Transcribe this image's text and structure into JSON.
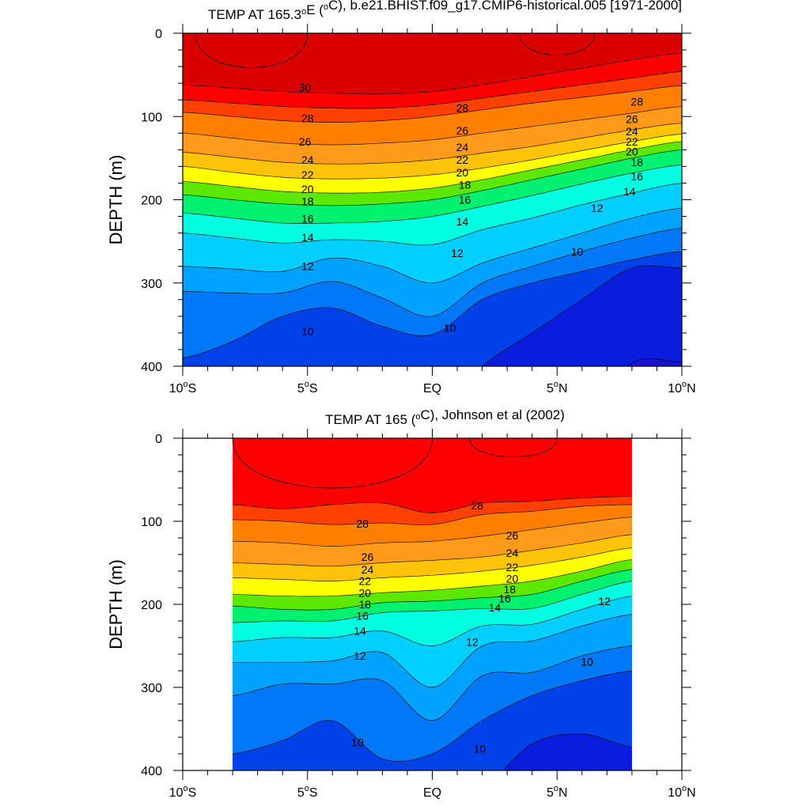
{
  "chart_data": [
    {
      "type": "heatmap",
      "title": "TEMP AT 165.3°E (°C), b.e21.BHIST.f09_g17.CMIP6-historical.005 [1971-2000]",
      "title_parts": {
        "pre": "TEMP AT 165.3",
        "deg": "o",
        "mid": "E (",
        "deg2": "o",
        "post": "C), b.e21.BHIST.f09_g17.CMIP6-historical.005 [1971-2000]"
      },
      "ylabel": "DEPTH (m)",
      "xlabel": "",
      "xlim": [
        -10,
        10
      ],
      "ylim": [
        400,
        0
      ],
      "x_ticks": [
        {
          "value": -10,
          "num": "10",
          "hem": "S"
        },
        {
          "value": -5,
          "num": "5",
          "hem": "S"
        },
        {
          "value": 0,
          "num": "EQ",
          "hem": ""
        },
        {
          "value": 5,
          "num": "5",
          "hem": "N"
        },
        {
          "value": 10,
          "num": "10",
          "hem": "N"
        }
      ],
      "y_ticks": [
        0,
        100,
        200,
        300,
        400
      ],
      "data_x_range": [
        -10,
        10
      ],
      "contour_interval_c": 1,
      "isotherm_depths_note": "depth (m) of each isotherm at x = -10,-8,-6,-4,-2,0,2,4,6,8,10",
      "x_nodes": [
        -10,
        -8,
        -6,
        -4,
        -2,
        0,
        2,
        4,
        6,
        8,
        10
      ],
      "isotherms": [
        {
          "temp": 30,
          "depth": [
            62,
            66,
            70,
            72,
            73,
            70,
            62,
            52,
            42,
            32,
            24
          ]
        },
        {
          "temp": 29,
          "depth": [
            80,
            84,
            88,
            90,
            90,
            86,
            78,
            70,
            62,
            54,
            46
          ]
        },
        {
          "temp": 28,
          "depth": [
            95,
            100,
            105,
            107,
            105,
            100,
            92,
            84,
            77,
            70,
            63
          ]
        },
        {
          "temp": 26,
          "depth": [
            120,
            126,
            132,
            134,
            132,
            128,
            120,
            112,
            104,
            96,
            88
          ]
        },
        {
          "temp": 24,
          "depth": [
            143,
            149,
            155,
            157,
            156,
            152,
            144,
            136,
            126,
            116,
            108
          ]
        },
        {
          "temp": 22,
          "depth": [
            160,
            167,
            173,
            175,
            174,
            170,
            162,
            152,
            141,
            130,
            121
          ]
        },
        {
          "temp": 20,
          "depth": [
            178,
            184,
            190,
            192,
            191,
            186,
            176,
            164,
            152,
            140,
            130
          ]
        },
        {
          "temp": 18,
          "depth": [
            194,
            200,
            205,
            207,
            205,
            200,
            189,
            176,
            163,
            150,
            140
          ]
        },
        {
          "temp": 16,
          "depth": [
            216,
            222,
            228,
            228,
            226,
            220,
            208,
            195,
            181,
            168,
            158
          ]
        },
        {
          "temp": 14,
          "depth": [
            240,
            246,
            252,
            248,
            250,
            254,
            236,
            222,
            206,
            192,
            180
          ]
        },
        {
          "temp": 12,
          "depth": [
            280,
            283,
            286,
            270,
            280,
            300,
            276,
            258,
            240,
            222,
            210
          ]
        },
        {
          "temp": 11,
          "depth": [
            310,
            312,
            312,
            298,
            318,
            340,
            300,
            280,
            262,
            246,
            234
          ]
        },
        {
          "temp": 10,
          "depth": [
            390,
            370,
            340,
            330,
            352,
            362,
            320,
            300,
            286,
            272,
            262
          ]
        },
        {
          "temp": 9,
          "depth": [
            460,
            460,
            460,
            460,
            460,
            460,
            400,
            360,
            320,
            282,
            282
          ]
        },
        {
          "temp": 8,
          "depth": [
            460,
            460,
            460,
            460,
            460,
            460,
            460,
            460,
            460,
            396,
            395
          ]
        }
      ],
      "warm_cores": [
        {
          "temp": 30.5,
          "x_from": -9.5,
          "x_to": -5,
          "max_depth": 55
        },
        {
          "temp": 30.5,
          "x_from": 3.5,
          "x_to": 6.5,
          "max_depth": 35
        }
      ],
      "contour_labels": [
        {
          "text": "30",
          "x": -5.1,
          "depth": 65
        },
        {
          "text": "28",
          "x": -5.0,
          "depth": 102
        },
        {
          "text": "26",
          "x": -5.1,
          "depth": 130
        },
        {
          "text": "24",
          "x": -5.0,
          "depth": 152
        },
        {
          "text": "22",
          "x": -5.0,
          "depth": 170
        },
        {
          "text": "20",
          "x": -5.0,
          "depth": 187
        },
        {
          "text": "18",
          "x": -5.0,
          "depth": 202
        },
        {
          "text": "16",
          "x": -5.0,
          "depth": 223
        },
        {
          "text": "14",
          "x": -5.0,
          "depth": 245
        },
        {
          "text": "12",
          "x": -5.0,
          "depth": 280
        },
        {
          "text": "10",
          "x": -5.0,
          "depth": 358
        },
        {
          "text": "28",
          "x": 1.2,
          "depth": 90
        },
        {
          "text": "26",
          "x": 1.2,
          "depth": 117
        },
        {
          "text": "24",
          "x": 1.2,
          "depth": 137
        },
        {
          "text": "22",
          "x": 1.2,
          "depth": 152
        },
        {
          "text": "20",
          "x": 1.2,
          "depth": 167
        },
        {
          "text": "18",
          "x": 1.3,
          "depth": 182
        },
        {
          "text": "16",
          "x": 1.3,
          "depth": 200
        },
        {
          "text": "14",
          "x": 1.2,
          "depth": 226
        },
        {
          "text": "12",
          "x": 1.0,
          "depth": 264
        },
        {
          "text": "10",
          "x": 0.7,
          "depth": 354
        },
        {
          "text": "28",
          "x": 8.2,
          "depth": 82
        },
        {
          "text": "26",
          "x": 8.0,
          "depth": 103
        },
        {
          "text": "24",
          "x": 8.0,
          "depth": 118
        },
        {
          "text": "22",
          "x": 8.0,
          "depth": 130
        },
        {
          "text": "20",
          "x": 8.0,
          "depth": 142
        },
        {
          "text": "18",
          "x": 8.2,
          "depth": 155
        },
        {
          "text": "16",
          "x": 8.2,
          "depth": 172
        },
        {
          "text": "14",
          "x": 7.9,
          "depth": 190
        },
        {
          "text": "12",
          "x": 6.6,
          "depth": 210
        },
        {
          "text": "10",
          "x": 5.8,
          "depth": 262
        }
      ],
      "colorbar": "none",
      "grid": false
    },
    {
      "type": "heatmap",
      "title": "TEMP AT 165 (°C), Johnson et al (2002)",
      "title_parts": {
        "pre": "TEMP AT 165 (",
        "deg": "o",
        "mid": "C), Johnson et al (2002)",
        "deg2": "",
        "post": ""
      },
      "ylabel": "DEPTH (m)",
      "xlabel": "",
      "xlim": [
        -10,
        10
      ],
      "ylim": [
        400,
        0
      ],
      "x_ticks": [
        {
          "value": -10,
          "num": "10",
          "hem": "S"
        },
        {
          "value": -5,
          "num": "5",
          "hem": "S"
        },
        {
          "value": 0,
          "num": "EQ",
          "hem": ""
        },
        {
          "value": 5,
          "num": "5",
          "hem": "N"
        },
        {
          "value": 10,
          "num": "10",
          "hem": "N"
        }
      ],
      "y_ticks": [
        0,
        100,
        200,
        300,
        400
      ],
      "data_x_range": [
        -8,
        8
      ],
      "contour_interval_c": 1,
      "isotherm_depths_note": "depth (m) of each isotherm at x = -8,-6,-4,-2,0,2,4,6,8",
      "x_nodes": [
        -8,
        -6,
        -4,
        -2,
        0,
        2,
        4,
        6,
        8
      ],
      "isotherms": [
        {
          "temp": 29,
          "depth": [
            80,
            85,
            80,
            78,
            90,
            78,
            76,
            72,
            70
          ]
        },
        {
          "temp": 28,
          "depth": [
            98,
            100,
            104,
            102,
            104,
            92,
            88,
            82,
            80
          ]
        },
        {
          "temp": 26,
          "depth": [
            124,
            126,
            130,
            126,
            124,
            118,
            110,
            102,
            95
          ]
        },
        {
          "temp": 24,
          "depth": [
            150,
            152,
            154,
            150,
            147,
            143,
            135,
            126,
            116
          ]
        },
        {
          "temp": 22,
          "depth": [
            168,
            170,
            172,
            168,
            165,
            160,
            153,
            143,
            132
          ]
        },
        {
          "temp": 20,
          "depth": [
            188,
            190,
            190,
            186,
            183,
            178,
            172,
            160,
            146
          ]
        },
        {
          "temp": 18,
          "depth": [
            202,
            206,
            206,
            198,
            196,
            192,
            188,
            172,
            158
          ]
        },
        {
          "temp": 16,
          "depth": [
            222,
            220,
            220,
            210,
            208,
            205,
            205,
            188,
            172
          ]
        },
        {
          "temp": 14,
          "depth": [
            245,
            240,
            240,
            232,
            250,
            226,
            224,
            206,
            190
          ]
        },
        {
          "temp": 12,
          "depth": [
            270,
            270,
            268,
            258,
            300,
            250,
            244,
            226,
            212
          ]
        },
        {
          "temp": 11,
          "depth": [
            310,
            296,
            296,
            292,
            340,
            286,
            282,
            262,
            250
          ]
        },
        {
          "temp": 10,
          "depth": [
            380,
            364,
            340,
            386,
            380,
            340,
            310,
            292,
            280
          ]
        },
        {
          "temp": 9,
          "depth": [
            420,
            420,
            420,
            420,
            420,
            420,
            368,
            356,
            372
          ]
        }
      ],
      "warm_cores": [
        {
          "temp": 29.5,
          "x_from": -8,
          "x_to": 0,
          "max_depth": 80
        },
        {
          "temp": 29.5,
          "x_from": 1.5,
          "x_to": 5,
          "max_depth": 30
        }
      ],
      "contour_labels": [
        {
          "text": "28",
          "x": -2.8,
          "depth": 103
        },
        {
          "text": "26",
          "x": -2.6,
          "depth": 143
        },
        {
          "text": "24",
          "x": -2.6,
          "depth": 158
        },
        {
          "text": "22",
          "x": -2.7,
          "depth": 172
        },
        {
          "text": "20",
          "x": -2.7,
          "depth": 186
        },
        {
          "text": "18",
          "x": -2.7,
          "depth": 200
        },
        {
          "text": "16",
          "x": -2.8,
          "depth": 214
        },
        {
          "text": "14",
          "x": -2.9,
          "depth": 232
        },
        {
          "text": "12",
          "x": -2.9,
          "depth": 262
        },
        {
          "text": "10",
          "x": -3.0,
          "depth": 366
        },
        {
          "text": "28",
          "x": 1.8,
          "depth": 81
        },
        {
          "text": "26",
          "x": 3.2,
          "depth": 117
        },
        {
          "text": "24",
          "x": 3.2,
          "depth": 138
        },
        {
          "text": "22",
          "x": 3.2,
          "depth": 155
        },
        {
          "text": "20",
          "x": 3.2,
          "depth": 169
        },
        {
          "text": "18",
          "x": 3.1,
          "depth": 182
        },
        {
          "text": "16",
          "x": 2.9,
          "depth": 193
        },
        {
          "text": "14",
          "x": 2.5,
          "depth": 204
        },
        {
          "text": "12",
          "x": 1.6,
          "depth": 245
        },
        {
          "text": "10",
          "x": 1.9,
          "depth": 374
        },
        {
          "text": "12",
          "x": 6.9,
          "depth": 196
        },
        {
          "text": "10",
          "x": 6.2,
          "depth": 269
        }
      ],
      "colorbar": "none",
      "grid": false
    }
  ],
  "palette": {
    "stops": [
      {
        "temp": 6,
        "color": "#3a00cc"
      },
      {
        "temp": 9,
        "color": "#0022e0"
      },
      {
        "temp": 10,
        "color": "#0060f0"
      },
      {
        "temp": 11,
        "color": "#0090ff"
      },
      {
        "temp": 12,
        "color": "#00b4ff"
      },
      {
        "temp": 13.5,
        "color": "#00dcff"
      },
      {
        "temp": 15,
        "color": "#00ffe0"
      },
      {
        "temp": 17,
        "color": "#00f070"
      },
      {
        "temp": 18.5,
        "color": "#00e000"
      },
      {
        "temp": 19.5,
        "color": "#b8f000"
      },
      {
        "temp": 21,
        "color": "#ffff00"
      },
      {
        "temp": 22.5,
        "color": "#ffd000"
      },
      {
        "temp": 24.5,
        "color": "#ffa020"
      },
      {
        "temp": 27,
        "color": "#ff8000"
      },
      {
        "temp": 28.5,
        "color": "#ff4000"
      },
      {
        "temp": 29.5,
        "color": "#ff0000"
      },
      {
        "temp": 31,
        "color": "#c80000"
      }
    ],
    "missing_color": "#ffffff"
  }
}
